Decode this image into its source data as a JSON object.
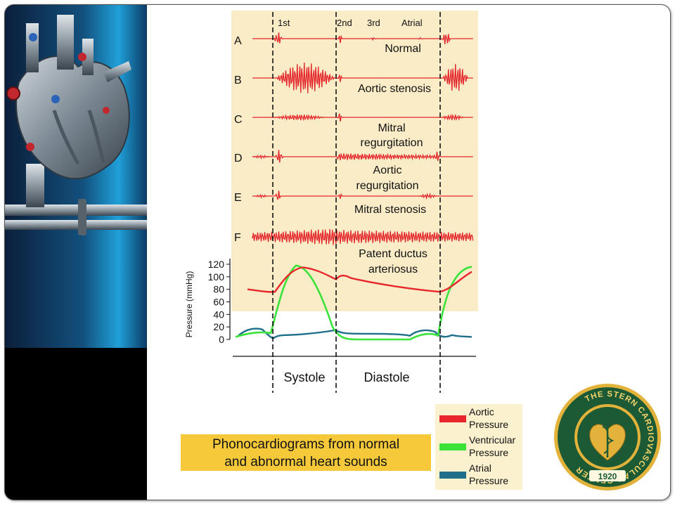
{
  "traces": {
    "top_labels": [
      "1st",
      "2nd",
      "3rd",
      "Atrial"
    ],
    "rows": [
      {
        "letter": "A",
        "name": [
          "Normal"
        ]
      },
      {
        "letter": "B",
        "name": [
          "Aortic stenosis"
        ]
      },
      {
        "letter": "C",
        "name": [
          "Mitral",
          "regurgitation"
        ]
      },
      {
        "letter": "D",
        "name": [
          "Aortic",
          "regurgitation"
        ]
      },
      {
        "letter": "E",
        "name": [
          "Mitral stenosis"
        ]
      },
      {
        "letter": "F",
        "name": [
          "Patent ductus",
          "arteriosus"
        ]
      }
    ]
  },
  "pressure_chart": {
    "ylabel": "Pressure (mmHg)",
    "yticks": [
      "120",
      "100",
      "80",
      "60",
      "40",
      "20",
      "0"
    ],
    "phases": {
      "systole": "Systole",
      "diastole": "Diastole"
    }
  },
  "caption": {
    "line1": "Phonocardiograms from normal",
    "line2": "and abnormal heart sounds"
  },
  "legend": [
    {
      "line1": "Aortic",
      "line2": "Pressure",
      "color": "#e8262b"
    },
    {
      "line1": "Ventricular",
      "line2": "Pressure",
      "color": "#3ae23a"
    },
    {
      "line1": "Atrial",
      "line2": "Pressure",
      "color": "#1f6f8a"
    }
  ],
  "seal": {
    "top_text": "THE STERN CARDIOVASCULAR CENTER",
    "year": "1920"
  },
  "colors": {
    "beige": "#faecc7",
    "trace": "#e3262c",
    "aortic": "#e8262b",
    "ventricular": "#3ae23a",
    "atrial": "#1f6f8a",
    "seal_green": "#1c5a35",
    "seal_gold": "#e2b23a"
  }
}
